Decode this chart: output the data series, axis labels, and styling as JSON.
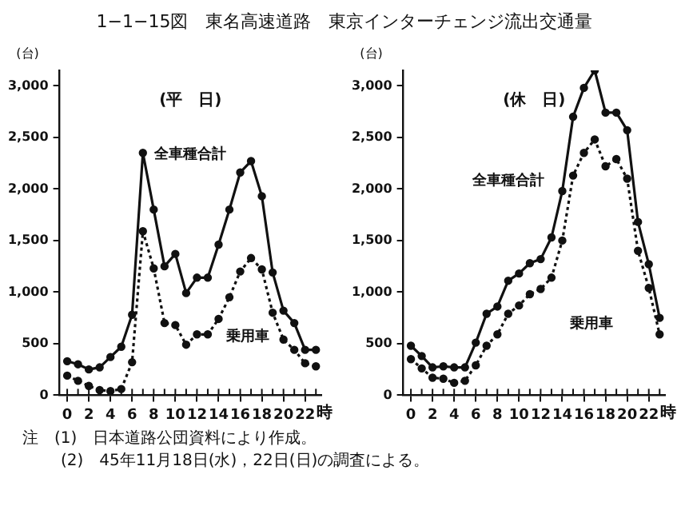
{
  "chart_data": [
    {
      "type": "line",
      "title": "1−1−15図　東名高速道路　東京インターチェンジ流出交通量",
      "subtitle": "(平　日)",
      "ylabel": "(台)",
      "xlabel": "時",
      "x": [
        0,
        1,
        2,
        3,
        4,
        5,
        6,
        7,
        8,
        9,
        10,
        11,
        12,
        13,
        14,
        15,
        16,
        17,
        18,
        19,
        20,
        21,
        22,
        23
      ],
      "series": [
        {
          "name": "全車種合計",
          "color": "#111111",
          "line_style": "solid",
          "values": [
            330,
            300,
            250,
            270,
            370,
            470,
            780,
            2350,
            1800,
            1250,
            1370,
            990,
            1140,
            1140,
            1460,
            1800,
            2160,
            2270,
            1930,
            1190,
            820,
            700,
            440,
            440
          ]
        },
        {
          "name": "乗用車",
          "color": "#111111",
          "line_style": "dotted",
          "values": [
            190,
            140,
            90,
            50,
            40,
            60,
            320,
            1590,
            1230,
            700,
            680,
            490,
            590,
            590,
            740,
            950,
            1200,
            1330,
            1220,
            800,
            540,
            440,
            310,
            280
          ]
        }
      ],
      "xlim": [
        -0.7,
        23.5
      ],
      "xticks": [
        0,
        2,
        4,
        6,
        8,
        10,
        12,
        14,
        16,
        18,
        20,
        22
      ],
      "ylim": [
        0,
        3150
      ],
      "yticks": [
        0,
        {
          "value": 500,
          "label": "500"
        },
        {
          "value": 1000,
          "label": "1,000"
        },
        {
          "value": 1500,
          "label": "1,500"
        },
        {
          "value": 2000,
          "label": "2,000"
        },
        {
          "value": 2500,
          "label": "2,500"
        },
        {
          "value": 3000,
          "label": "3,000"
        }
      ],
      "grid": false,
      "legend": false,
      "marker": "circle",
      "annotations": [
        "注　(1)　日本道路公団資料により作成。",
        "(2)　45年11月18日(水)，22日(日)の調査による。"
      ]
    },
    {
      "type": "line",
      "subtitle": "(休　日)",
      "ylabel": "(台)",
      "xlabel": "時",
      "x": [
        0,
        1,
        2,
        3,
        4,
        5,
        6,
        7,
        8,
        9,
        10,
        11,
        12,
        13,
        14,
        15,
        16,
        17,
        18,
        19,
        20,
        21,
        22,
        23
      ],
      "series": [
        {
          "name": "全車種合計",
          "color": "#111111",
          "line_style": "solid",
          "values": [
            480,
            380,
            270,
            280,
            270,
            270,
            510,
            790,
            860,
            1110,
            1180,
            1280,
            1320,
            1530,
            1980,
            2700,
            2980,
            3150,
            2740,
            2740,
            2570,
            1680,
            1270,
            750
          ]
        },
        {
          "name": "乗用車",
          "color": "#111111",
          "line_style": "dotted",
          "values": [
            350,
            260,
            170,
            160,
            120,
            140,
            290,
            480,
            590,
            790,
            870,
            980,
            1030,
            1140,
            1500,
            2130,
            2350,
            2480,
            2220,
            2290,
            2100,
            1400,
            1040,
            590
          ]
        }
      ],
      "xlim": [
        -0.7,
        23.5
      ],
      "xticks": [
        0,
        2,
        4,
        6,
        8,
        10,
        12,
        14,
        16,
        18,
        20,
        22
      ],
      "ylim": [
        0,
        3150
      ],
      "yticks": [
        0,
        {
          "value": 500,
          "label": "500"
        },
        {
          "value": 1000,
          "label": "1,000"
        },
        {
          "value": 1500,
          "label": "1,500"
        },
        {
          "value": 2000,
          "label": "2,000"
        },
        {
          "value": 2500,
          "label": "2,500"
        },
        {
          "value": 3000,
          "label": "3,000"
        }
      ],
      "grid": false,
      "legend": false,
      "marker": "circle"
    }
  ]
}
